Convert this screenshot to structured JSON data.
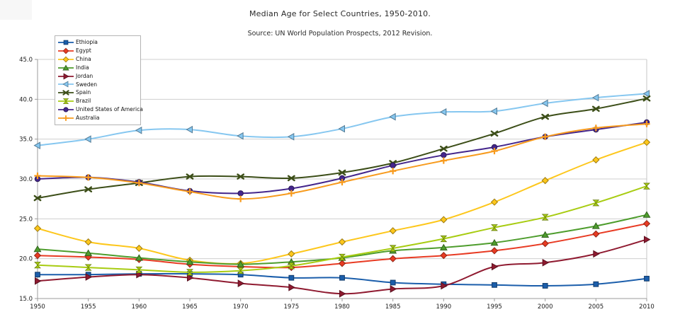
{
  "title": "Median Age for Select Countries, 1950-2010.",
  "subtitle": "Source: UN World Population Prospects, 2012 Revision.",
  "chart_data": {
    "type": "line",
    "title": "Median Age for Select Countries, 1950-2010.",
    "subtitle": "Source: UN World Population Prospects, 2012 Revision.",
    "x": [
      1950,
      1955,
      1960,
      1965,
      1970,
      1975,
      1980,
      1985,
      1990,
      1995,
      2000,
      2005,
      2010
    ],
    "x_tick_labels": [
      "1950",
      "1955",
      "1960",
      "1965",
      "1970",
      "1975",
      "1980",
      "1985",
      "1990",
      "1995",
      "2000",
      "2005",
      "2010"
    ],
    "y_ticks": [
      15,
      20,
      25,
      30,
      35,
      40,
      45
    ],
    "y_tick_labels": [
      "15.0",
      "20.0",
      "25.0",
      "30.0",
      "35.0",
      "40.0",
      "45.0"
    ],
    "ylim": [
      15.0,
      45.0
    ],
    "grid": true,
    "smoothed_lines": true,
    "legend_position": "top-left",
    "axis_color": "#9b9b9b",
    "gridline_color": "#cfcfcf",
    "right_border_color": "#c4c4c4",
    "series": [
      {
        "name": "Ethiopia",
        "color": "#1b5eab",
        "marker": "square",
        "values": [
          18.0,
          18.0,
          18.1,
          18.1,
          18.0,
          17.6,
          17.6,
          17.0,
          16.8,
          16.7,
          16.6,
          16.8,
          17.5
        ]
      },
      {
        "name": "Egypt",
        "color": "#e83b23",
        "marker": "diamond",
        "values": [
          20.4,
          20.2,
          19.9,
          19.3,
          19.0,
          18.9,
          19.4,
          20.0,
          20.4,
          21.0,
          21.9,
          23.1,
          24.4
        ]
      },
      {
        "name": "China",
        "color": "#fdc71c",
        "marker": "diamond",
        "values": [
          23.8,
          22.1,
          21.3,
          19.8,
          19.4,
          20.6,
          22.1,
          23.5,
          24.9,
          27.1,
          29.8,
          32.4,
          34.6
        ]
      },
      {
        "name": "India",
        "color": "#4e9d2d",
        "marker": "triangle-up",
        "values": [
          21.2,
          20.7,
          20.1,
          19.6,
          19.3,
          19.6,
          20.1,
          21.0,
          21.4,
          22.0,
          23.0,
          24.1,
          25.5
        ]
      },
      {
        "name": "Jordan",
        "color": "#8f1a30",
        "marker": "triangle-right",
        "values": [
          17.2,
          17.7,
          18.0,
          17.6,
          16.9,
          16.4,
          15.6,
          16.2,
          16.6,
          19.0,
          19.5,
          20.6,
          22.4
        ]
      },
      {
        "name": "Sweden",
        "color": "#86c7f0",
        "marker": "triangle-left",
        "values": [
          34.2,
          35.0,
          36.1,
          36.2,
          35.4,
          35.3,
          36.3,
          37.8,
          38.4,
          38.5,
          39.5,
          40.2,
          40.7
        ]
      },
      {
        "name": "Spain",
        "color": "#3c4e18",
        "marker": "x",
        "values": [
          27.6,
          28.7,
          29.5,
          30.3,
          30.3,
          30.1,
          30.8,
          32.0,
          33.8,
          35.7,
          37.8,
          38.8,
          40.1
        ]
      },
      {
        "name": "Brazil",
        "color": "#a8cc12",
        "marker": "hourglass",
        "values": [
          19.2,
          18.9,
          18.6,
          18.3,
          18.5,
          19.1,
          20.2,
          21.3,
          22.5,
          23.9,
          25.2,
          27.0,
          29.1
        ]
      },
      {
        "name": "United States of America",
        "color": "#44268c",
        "marker": "circle",
        "values": [
          30.0,
          30.2,
          29.6,
          28.5,
          28.2,
          28.8,
          30.1,
          31.7,
          33.0,
          34.0,
          35.3,
          36.2,
          37.1
        ]
      },
      {
        "name": "Australia",
        "color": "#f79b1e",
        "marker": "plus",
        "values": [
          30.4,
          30.2,
          29.5,
          28.4,
          27.5,
          28.2,
          29.6,
          31.0,
          32.3,
          33.5,
          35.3,
          36.4,
          36.9
        ]
      }
    ]
  }
}
